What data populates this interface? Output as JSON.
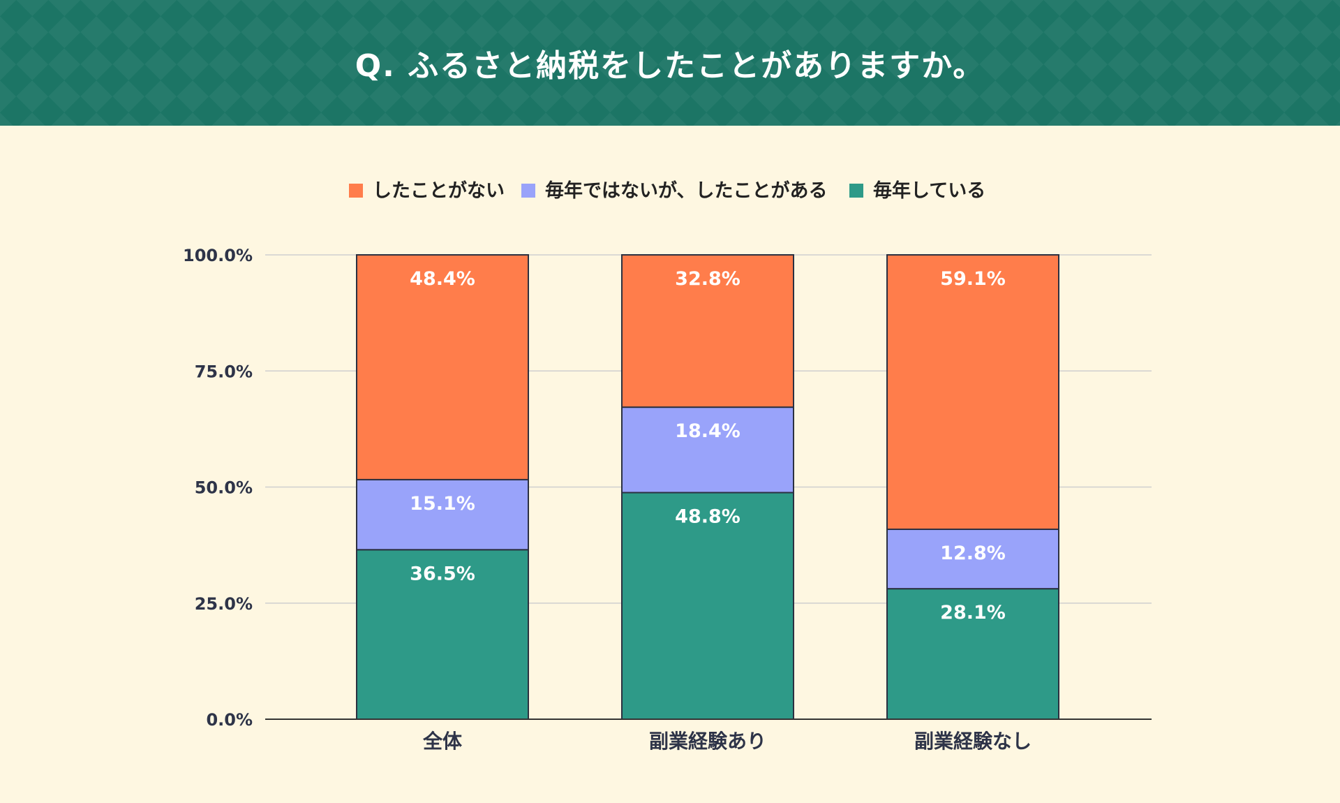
{
  "title": "Q. ふるさと納税をしたことがありますか。",
  "colors": {
    "header_bg": "#1c7565",
    "background": "#fef7e1",
    "never": "#ff7d4b",
    "not_every_year": "#99a3fa",
    "every_year": "#2e9a88"
  },
  "chart_data": {
    "type": "bar",
    "stacked": true,
    "title": "Q. ふるさと納税をしたことがありますか。",
    "categories": [
      "全体",
      "副業経験あり",
      "副業経験なし"
    ],
    "series": [
      {
        "name": "毎年している",
        "color": "#2e9a88",
        "values": [
          36.5,
          48.8,
          28.1
        ],
        "labels": [
          "36.5%",
          "48.8%",
          "28.1%"
        ]
      },
      {
        "name": "毎年ではないが、したことがある",
        "color": "#99a3fa",
        "values": [
          15.1,
          18.4,
          12.8
        ],
        "labels": [
          "15.1%",
          "18.4%",
          "12.8%"
        ]
      },
      {
        "name": "したことがない",
        "color": "#ff7d4b",
        "values": [
          48.4,
          32.8,
          59.1
        ],
        "labels": [
          "48.4%",
          "32.8%",
          "59.1%"
        ]
      }
    ],
    "legend": [
      "したことがない",
      "毎年ではないが、したことがある",
      "毎年している"
    ],
    "legend_position": "top",
    "ylim": [
      0,
      100
    ],
    "yticks": [
      0,
      25,
      50,
      75,
      100
    ],
    "ytick_labels": [
      "0.0%",
      "25.0%",
      "50.0%",
      "75.0%",
      "100.0%"
    ],
    "grid": true,
    "xlabel": "",
    "ylabel": ""
  }
}
